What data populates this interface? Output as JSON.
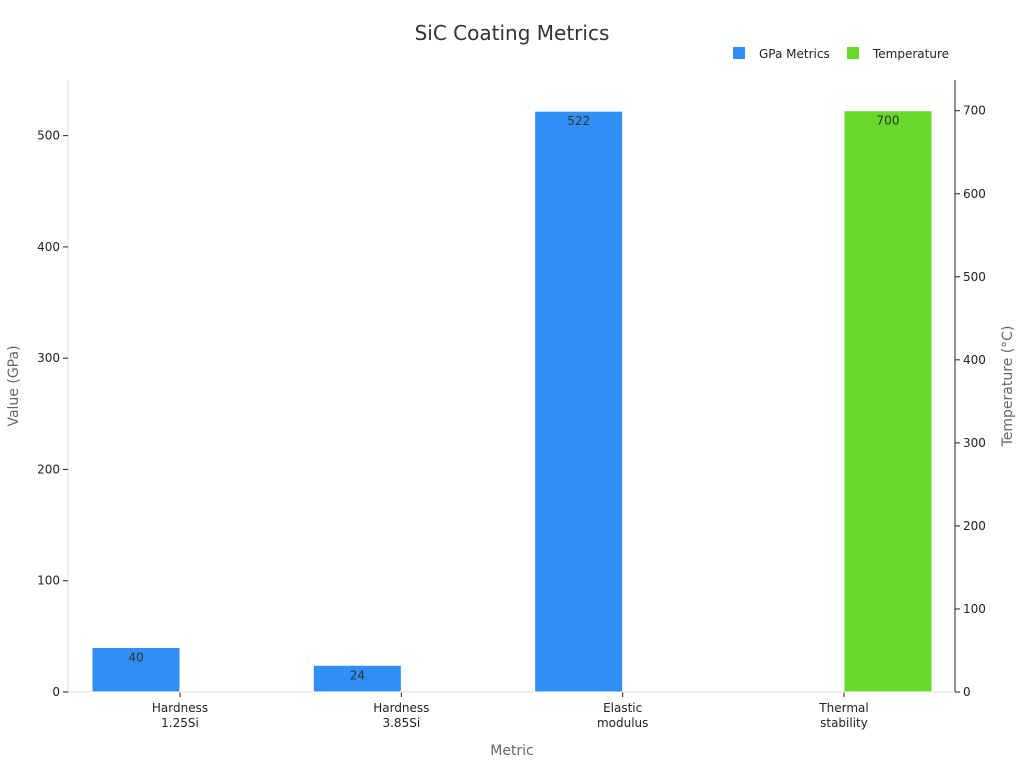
{
  "chart_data": {
    "type": "bar",
    "title": "SiC Coating Metrics",
    "xlabel": "Metric",
    "ylabel": "Value (GPa)",
    "y2label": "Temperature (°C)",
    "categories": [
      [
        "Hardness",
        "1.25Si"
      ],
      [
        "Hardness",
        "3.85Si"
      ],
      [
        "Elastic",
        "modulus"
      ],
      [
        "Thermal",
        "stability"
      ]
    ],
    "ylim": [
      0,
      550
    ],
    "y2lim": [
      0,
      737
    ],
    "yticks": [
      0,
      100,
      200,
      300,
      400,
      500
    ],
    "y2ticks": [
      0,
      100,
      200,
      300,
      400,
      500,
      600,
      700
    ],
    "legend_position": "top-right",
    "grid": false,
    "series": [
      {
        "name": "GPa Metrics",
        "axis": "left",
        "color": "#2f8ff5",
        "values": [
          40,
          24,
          522,
          null
        ],
        "labels": [
          "40",
          "24",
          "522",
          ""
        ]
      },
      {
        "name": "Temperature",
        "axis": "right",
        "color": "#66d92a",
        "values": [
          null,
          null,
          null,
          700
        ],
        "labels": [
          "",
          "",
          "",
          "700"
        ]
      }
    ]
  }
}
